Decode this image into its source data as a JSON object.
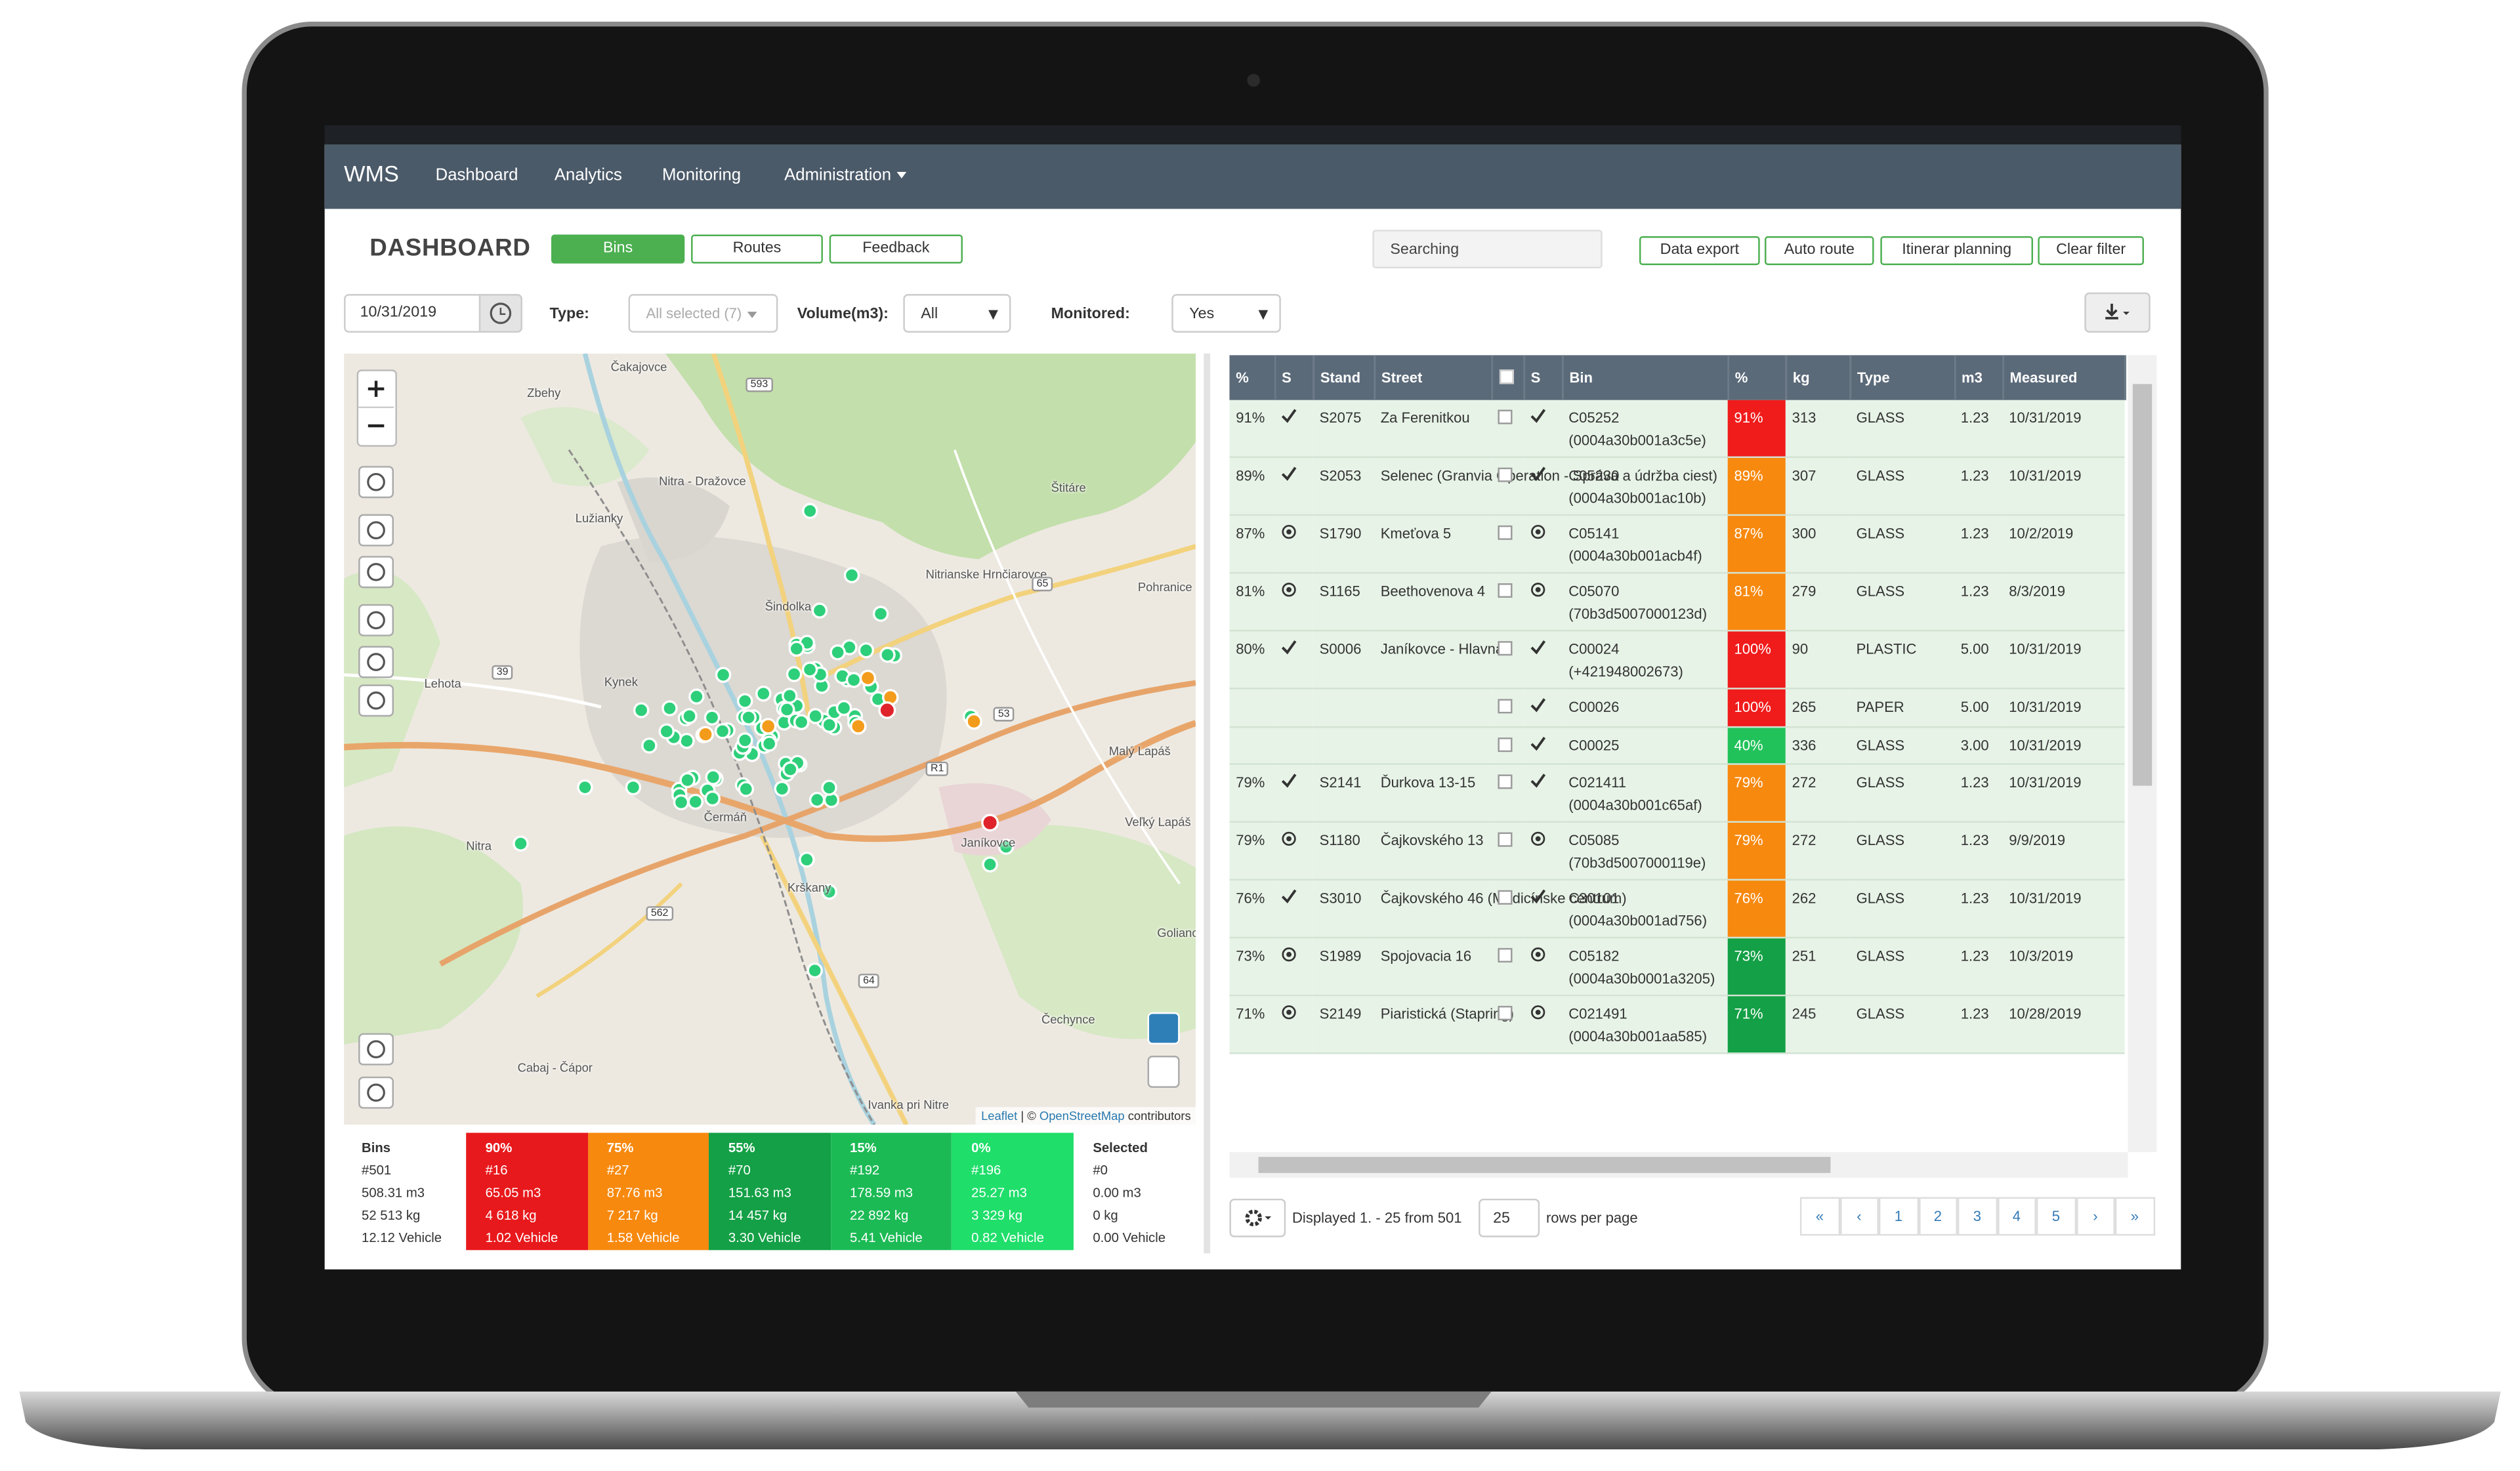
{
  "nav": {
    "brand": "WMS",
    "items": [
      "Dashboard",
      "Analytics",
      "Monitoring",
      "Administration"
    ]
  },
  "header": {
    "title": "DASHBOARD",
    "tabs": [
      "Bins",
      "Routes",
      "Feedback"
    ],
    "search": "Searching",
    "actions": [
      "Data export",
      "Auto route",
      "Itinerar planning",
      "Clear filter"
    ]
  },
  "filters": {
    "date": "10/31/2019",
    "type_label": "Type:",
    "type_value": "All selected (7)",
    "volume_label": "Volume(m3):",
    "volume_value": "All",
    "monitored_label": "Monitored:",
    "monitored_value": "Yes"
  },
  "map": {
    "places": [
      "Čakajovce",
      "Zbehy",
      "Nitra - Dražovce",
      "Lužianky",
      "Štitáre",
      "Nitrianske Hrnčiarovce",
      "Šindolka",
      "Pohranice",
      "Lehota",
      "Kynek",
      "Malý Lapáš",
      "Čermáň",
      "Janíkovce",
      "Veľký Lapáš",
      "Krškany",
      "Nitra",
      "Golianovo",
      "Čechynce",
      "Cabaj - Čápor",
      "Ivanka pri Nitre"
    ],
    "roads": [
      "593",
      "65",
      "53",
      "R1",
      "562",
      "64",
      "39"
    ],
    "attribution": [
      "Leaflet",
      "| ©",
      "OpenStreetMap",
      "contributors"
    ]
  },
  "summary": {
    "bins": [
      "Bins",
      "#501",
      "508.31 m3",
      "52 513 kg",
      "12.12 Vehicle"
    ],
    "buckets": [
      {
        "color": "#e8191c",
        "lines": [
          "90%",
          "#16",
          "65.05 m3",
          "4 618 kg",
          "1.02 Vehicle"
        ]
      },
      {
        "color": "#f7890f",
        "lines": [
          "75%",
          "#27",
          "87.76 m3",
          "7 217 kg",
          "1.58 Vehicle"
        ]
      },
      {
        "color": "#14a046",
        "lines": [
          "55%",
          "#70",
          "151.63 m3",
          "14 457 kg",
          "3.30 Vehicle"
        ]
      },
      {
        "color": "#1cba55",
        "lines": [
          "15%",
          "#192",
          "178.59 m3",
          "22 892 kg",
          "5.41 Vehicle"
        ]
      },
      {
        "color": "#1fde6a",
        "lines": [
          "0%",
          "#196",
          "25.27 m3",
          "3 329 kg",
          "0.82 Vehicle"
        ]
      }
    ],
    "selected": [
      "Selected",
      "#0",
      "0.00 m3",
      "0 kg",
      "0.00 Vehicle"
    ]
  },
  "table": {
    "columns": [
      "%",
      "S",
      "Stand",
      "Street",
      "S",
      "Bin",
      "%",
      "kg",
      "Type",
      "m3",
      "Measured"
    ],
    "rows": [
      {
        "pct": "91%",
        "s": "check",
        "stand": "S2075",
        "street": "Za Ferenitkou",
        "bin_s": "check",
        "bin": "C05252",
        "bin_id": "(0004a30b001a3c5e)",
        "bin_pct": "91%",
        "bin_color": "#f01b1b",
        "kg": "313",
        "type": "GLASS",
        "m3": "1.23",
        "measured": "10/31/2019"
      },
      {
        "pct": "89%",
        "s": "check",
        "stand": "S2053",
        "street": "Selenec (Granvia Operation - Správa a údržba ciest)",
        "bin_s": "check",
        "bin": "C05230",
        "bin_id": "(0004a30b001ac10b)",
        "bin_pct": "89%",
        "bin_color": "#f7890f",
        "kg": "307",
        "type": "GLASS",
        "m3": "1.23",
        "measured": "10/31/2019"
      },
      {
        "pct": "87%",
        "s": "target",
        "stand": "S1790",
        "street": "Kmeťova 5",
        "bin_s": "target",
        "bin": "C05141",
        "bin_id": "(0004a30b001acb4f)",
        "bin_pct": "87%",
        "bin_color": "#f7890f",
        "kg": "300",
        "type": "GLASS",
        "m3": "1.23",
        "measured": "10/2/2019"
      },
      {
        "pct": "81%",
        "s": "target",
        "stand": "S1165",
        "street": "Beethovenova 4",
        "bin_s": "target",
        "bin": "C05070",
        "bin_id": "(70b3d5007000123d)",
        "bin_pct": "81%",
        "bin_color": "#f7890f",
        "kg": "279",
        "type": "GLASS",
        "m3": "1.23",
        "measured": "8/3/2019"
      },
      {
        "pct": "80%",
        "s": "check",
        "stand": "S0006",
        "street": "Janíkovce - Hlavná",
        "bin_s": "check",
        "bin": "C00024",
        "bin_id": "(+421948002673)",
        "bin_pct": "100%",
        "bin_color": "#f01b1b",
        "kg": "90",
        "type": "PLASTIC",
        "m3": "5.00",
        "measured": "10/31/2019"
      },
      {
        "bin_s": "check",
        "bin": "C00026",
        "bin_pct": "100%",
        "bin_color": "#f01b1b",
        "kg": "265",
        "type": "PAPER",
        "m3": "5.00",
        "measured": "10/31/2019"
      },
      {
        "bin_s": "check",
        "bin": "C00025",
        "bin_pct": "40%",
        "bin_color": "#22c25a",
        "kg": "336",
        "type": "GLASS",
        "m3": "3.00",
        "measured": "10/31/2019"
      },
      {
        "pct": "79%",
        "s": "check",
        "stand": "S2141",
        "street": "Ďurkova 13-15",
        "bin_s": "check",
        "bin": "C021411",
        "bin_id": "(0004a30b001c65af)",
        "bin_pct": "79%",
        "bin_color": "#f7890f",
        "kg": "272",
        "type": "GLASS",
        "m3": "1.23",
        "measured": "10/31/2019"
      },
      {
        "pct": "79%",
        "s": "target",
        "stand": "S1180",
        "street": "Čajkovského 13",
        "bin_s": "target",
        "bin": "C05085",
        "bin_id": "(70b3d5007000119e)",
        "bin_pct": "79%",
        "bin_color": "#f7890f",
        "kg": "272",
        "type": "GLASS",
        "m3": "1.23",
        "measured": "9/9/2019"
      },
      {
        "pct": "76%",
        "s": "check",
        "stand": "S3010",
        "street": "Čajkovského 46 (Medicínske centrum)",
        "bin_s": "check",
        "bin": "C30101",
        "bin_id": "(0004a30b001ad756)",
        "bin_pct": "76%",
        "bin_color": "#f7890f",
        "kg": "262",
        "type": "GLASS",
        "m3": "1.23",
        "measured": "10/31/2019"
      },
      {
        "pct": "73%",
        "s": "target",
        "stand": "S1989",
        "street": "Spojovacia 16",
        "bin_s": "target",
        "bin": "C05182",
        "bin_id": "(0004a30b0001a3205)",
        "bin_pct": "73%",
        "bin_color": "#14a046",
        "kg": "251",
        "type": "GLASS",
        "m3": "1.23",
        "measured": "10/3/2019"
      },
      {
        "pct": "71%",
        "s": "target",
        "stand": "S2149",
        "street": "Piaristická (Stapring)",
        "bin_s": "target",
        "bin": "C021491",
        "bin_id": "(0004a30b001aa585)",
        "bin_pct": "71%",
        "bin_color": "#14a046",
        "kg": "245",
        "type": "GLASS",
        "m3": "1.23",
        "measured": "10/28/2019"
      }
    ]
  },
  "footer": {
    "displayed": "Displayed 1. - 25 from 501",
    "page_size": "25",
    "rows_label": "rows per page",
    "pages": [
      "«",
      "‹",
      "1",
      "2",
      "3",
      "4",
      "5",
      "›",
      "»"
    ]
  }
}
